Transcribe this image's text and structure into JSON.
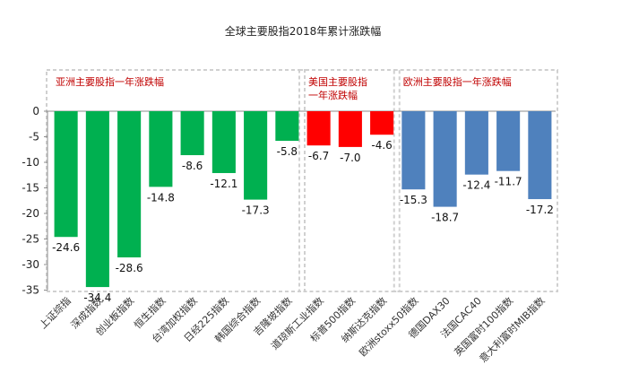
{
  "chart_data": {
    "type": "bar",
    "title": "全球主要股指2018年累计涨跌幅",
    "xlabel": "",
    "ylabel": "",
    "ylim": [
      -35,
      0
    ],
    "yticks": [
      0,
      -5,
      -10,
      -15,
      -20,
      -25,
      -30,
      -35
    ],
    "grid": false,
    "legend": "none",
    "categories": [
      "上证综指",
      "深成指数",
      "创业板指数",
      "恒生指数",
      "台湾加权指数",
      "日经225指数",
      "韩国综合指数",
      "吉隆坡指数",
      "道琼斯工业指数",
      "标普500指数",
      "纳斯达克指数",
      "欧洲stoxx50指数",
      "德国DAX30",
      "法国CAC40",
      "英国富时100指数",
      "意大利富时MIB指数"
    ],
    "values": [
      -24.6,
      -34.4,
      -28.6,
      -14.8,
      -8.6,
      -12.1,
      -17.3,
      -5.8,
      -6.7,
      -7.0,
      -4.6,
      -15.3,
      -18.7,
      -12.4,
      -11.7,
      -17.2
    ],
    "value_labels": [
      "-24.6",
      "-34.4",
      "-28.6",
      "-14.8",
      "-8.6",
      "-12.1",
      "-17.3",
      "-5.8",
      "-6.7",
      "-7.0",
      "-4.6",
      "-15.3",
      "-18.7",
      "-12.4",
      "-11.7",
      "-17.2"
    ],
    "groups": [
      {
        "title": "亚洲主要股指一年涨跌幅",
        "title_lines": [
          "亚洲主要股指一年涨跌幅"
        ],
        "start": 0,
        "end": 7,
        "color": "#00b050"
      },
      {
        "title": "美国主要股指一年涨跌幅",
        "title_lines": [
          "美国主要股指",
          "一年涨跌幅"
        ],
        "start": 8,
        "end": 10,
        "color": "#ff0000"
      },
      {
        "title": "欧洲主要股指一年涨跌幅",
        "title_lines": [
          "欧洲主要股指一年涨跌幅"
        ],
        "start": 11,
        "end": 15,
        "color": "#4f81bd"
      }
    ],
    "group_title_color": "#c00000",
    "box_border_color": "#d0d0d0"
  }
}
